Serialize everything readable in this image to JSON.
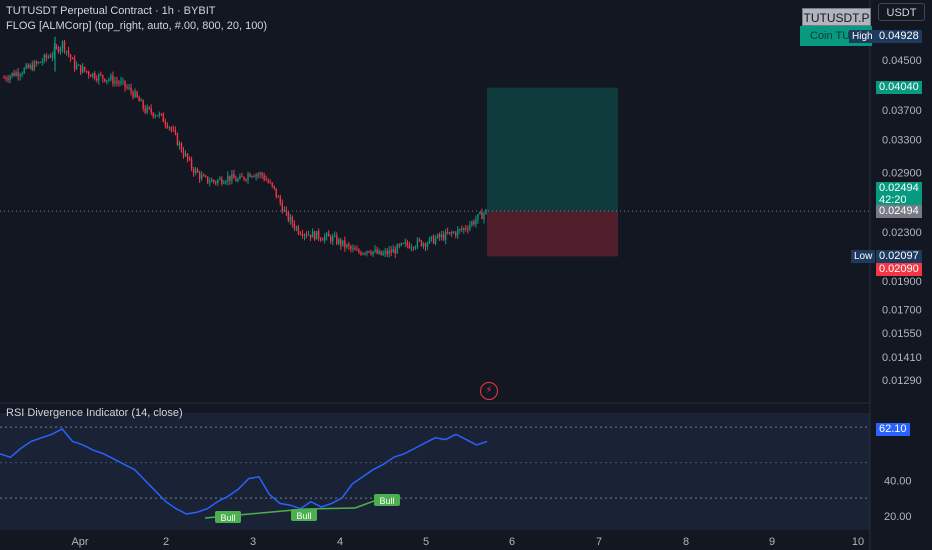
{
  "legend": {
    "title": "TUTUSDT Perpetual Contract · 1h · BYBIT",
    "indicator": "FLOG [ALMCorp] (top_right, auto, #.00, 800, 20, 100)",
    "rsi": "RSI Divergence Indicator (14, close)"
  },
  "toolbar": {
    "currency_button": "USDT"
  },
  "badges": {
    "symbol": "TUTUSDT.P",
    "coin": "Coin TU"
  },
  "price_axis": {
    "ticks": [
      "0.04500",
      "0.03700",
      "0.03300",
      "0.02900",
      "0.02300",
      "0.01900",
      "0.01700",
      "0.01550",
      "0.01410",
      "0.01290"
    ],
    "high_label": "High",
    "high_value": "0.04928",
    "target_value": "0.04040",
    "last_value": "0.02494",
    "countdown": "42:20",
    "last_value_grey": "0.02494",
    "low_label": "Low",
    "low_value": "0.02097",
    "stop_value": "0.02090"
  },
  "rsi_axis": {
    "ticks": [
      "40.00",
      "20.00"
    ],
    "value_tag": "62.10",
    "value": 62.1,
    "upper_band": 70,
    "lower_band": 30
  },
  "time_axis": {
    "ticks": [
      "Apr",
      "2",
      "3",
      "4",
      "5",
      "6",
      "7",
      "8",
      "9",
      "10"
    ]
  },
  "divergence_labels": [
    "Bull",
    "Bull",
    "Bull"
  ],
  "colors": {
    "up": "#089981",
    "down": "#f23645",
    "rsi_line": "#2962ff",
    "background": "#131722"
  },
  "chart_data": {
    "type": "candlestick",
    "price_scale": "log",
    "x_labels": [
      "Apr",
      "2",
      "3",
      "4",
      "5",
      "6",
      "7",
      "8",
      "9",
      "10"
    ],
    "price_range": [
      0.012,
      0.052
    ],
    "high": 0.04928,
    "low": 0.02097,
    "last_close": 0.02494,
    "long_position": {
      "entry": 0.02494,
      "target": 0.0404,
      "stop": 0.0209
    },
    "price_path": [
      0.042,
      0.0428,
      0.0435,
      0.0445,
      0.046,
      0.048,
      0.044,
      0.043,
      0.0422,
      0.0418,
      0.041,
      0.0395,
      0.037,
      0.0365,
      0.035,
      0.032,
      0.0295,
      0.0282,
      0.028,
      0.0285,
      0.0281,
      0.029,
      0.0287,
      0.027,
      0.0245,
      0.0232,
      0.0228,
      0.0226,
      0.0224,
      0.0218,
      0.0212,
      0.0215,
      0.021,
      0.0213,
      0.0218,
      0.022,
      0.0221,
      0.0225,
      0.0228,
      0.0232,
      0.024,
      0.0249
    ],
    "rsi": {
      "length": 14,
      "source": "close",
      "values": [
        55,
        53,
        58,
        62,
        64,
        66,
        69,
        62,
        60,
        57,
        55,
        52,
        49,
        46,
        40,
        34,
        28,
        24,
        21,
        22,
        24,
        28,
        31,
        35,
        41,
        42,
        32,
        27,
        26,
        24,
        28,
        25,
        27,
        30,
        38,
        42,
        46,
        49,
        53,
        55,
        58,
        61,
        64,
        63,
        66,
        63,
        60,
        62
      ],
      "ylim": [
        12,
        78
      ],
      "divergences": [
        "Bull",
        "Bull",
        "Bull"
      ]
    }
  }
}
